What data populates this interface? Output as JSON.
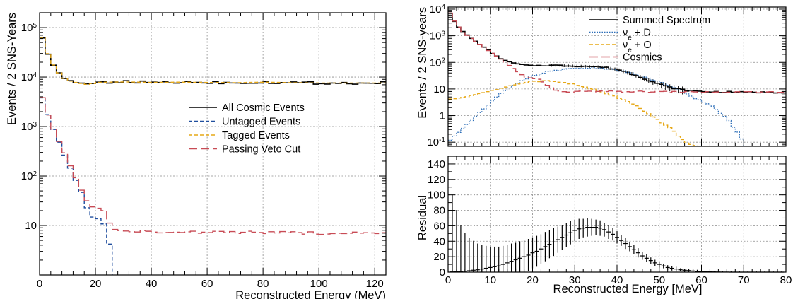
{
  "chart_data": [
    {
      "type": "line",
      "xlabel": "Reconstructed Energy (MeV)",
      "ylabel": "Events / 2 SNS-Years",
      "xlim": [
        0,
        124
      ],
      "ylim": [
        1,
        200000
      ],
      "yscale": "log",
      "grid": true,
      "legend": "center-right",
      "x_ticks": [
        "0",
        "20",
        "40",
        "60",
        "80",
        "100",
        "120"
      ],
      "y_ticks": [
        "10",
        "10^2",
        "10^3",
        "10^4",
        "10^5"
      ],
      "bin_width": 2,
      "series": [
        {
          "name": "All Cosmic Events",
          "color": "#000000",
          "style": "solid",
          "points": [
            [
              0,
              100000
            ],
            [
              2,
              40000
            ],
            [
              4,
              22000
            ],
            [
              6,
              14000
            ],
            [
              8,
              10500
            ],
            [
              10,
              8500
            ],
            [
              14,
              7600
            ],
            [
              18,
              7000
            ],
            [
              20,
              7800
            ],
            [
              30,
              8000
            ],
            [
              40,
              7800
            ],
            [
              50,
              7900
            ],
            [
              60,
              7800
            ],
            [
              70,
              7700
            ],
            [
              80,
              7900
            ],
            [
              90,
              7700
            ],
            [
              100,
              7600
            ],
            [
              110,
              7600
            ],
            [
              124,
              7600
            ]
          ]
        },
        {
          "name": "Untagged Events",
          "color": "#1f4e9e",
          "style": "dashed",
          "points": [
            [
              0,
              6000
            ],
            [
              2,
              2500
            ],
            [
              4,
              1200
            ],
            [
              6,
              650
            ],
            [
              8,
              350
            ],
            [
              10,
              200
            ],
            [
              12,
              110
            ],
            [
              14,
              60
            ],
            [
              16,
              35
            ],
            [
              18,
              15
            ],
            [
              22,
              13
            ],
            [
              24,
              10
            ],
            [
              25,
              4
            ],
            [
              26,
              1
            ]
          ]
        },
        {
          "name": "Tagged Events",
          "color": "#e6a817",
          "style": "dashed",
          "points": [
            [
              0,
              100000
            ],
            [
              2,
              40000
            ],
            [
              4,
              22000
            ],
            [
              6,
              14000
            ],
            [
              8,
              10500
            ],
            [
              10,
              8500
            ],
            [
              14,
              7600
            ],
            [
              18,
              7000
            ],
            [
              20,
              7800
            ],
            [
              30,
              8000
            ],
            [
              40,
              7800
            ],
            [
              50,
              7900
            ],
            [
              60,
              7800
            ],
            [
              70,
              7700
            ],
            [
              80,
              7900
            ],
            [
              90,
              7700
            ],
            [
              100,
              7600
            ],
            [
              110,
              7600
            ],
            [
              124,
              7600
            ]
          ]
        },
        {
          "name": "Passing Veto Cut",
          "color": "#c84b55",
          "style": "long-dashed",
          "points": [
            [
              0,
              6000
            ],
            [
              2,
              2500
            ],
            [
              4,
              1200
            ],
            [
              6,
              650
            ],
            [
              8,
              380
            ],
            [
              10,
              220
            ],
            [
              12,
              120
            ],
            [
              14,
              70
            ],
            [
              16,
              40
            ],
            [
              18,
              25
            ],
            [
              22,
              22
            ],
            [
              24,
              17
            ],
            [
              26,
              8
            ],
            [
              30,
              7.5
            ],
            [
              40,
              7.5
            ],
            [
              60,
              7.3
            ],
            [
              80,
              7.3
            ],
            [
              100,
              7
            ],
            [
              124,
              7
            ]
          ]
        }
      ]
    },
    {
      "type": "line",
      "xlabel": "",
      "ylabel": "Events / 2 SNS-years",
      "xlim": [
        0,
        80
      ],
      "ylim": [
        0.07,
        12000
      ],
      "yscale": "log",
      "grid": true,
      "legend": "top-right",
      "y_ticks": [
        "10^-1",
        "1",
        "10",
        "10^2",
        "10^3",
        "10^4"
      ],
      "bin_width": 1,
      "series": [
        {
          "name": "Summed Spectrum",
          "color": "#000000",
          "style": "solid",
          "points": [
            [
              0,
              10000
            ],
            [
              2,
              2500
            ],
            [
              4,
              1200
            ],
            [
              6,
              700
            ],
            [
              8,
              420
            ],
            [
              10,
              250
            ],
            [
              12,
              150
            ],
            [
              14,
              110
            ],
            [
              16,
              90
            ],
            [
              18,
              80
            ],
            [
              20,
              75
            ],
            [
              24,
              78
            ],
            [
              28,
              75
            ],
            [
              32,
              72
            ],
            [
              36,
              68
            ],
            [
              40,
              55
            ],
            [
              44,
              35
            ],
            [
              48,
              20
            ],
            [
              52,
              12
            ],
            [
              56,
              9
            ],
            [
              60,
              8
            ],
            [
              70,
              7.5
            ],
            [
              80,
              7.5
            ]
          ]
        },
        {
          "name": "ν_e + D",
          "color": "#2e6fb8",
          "style": "dotted",
          "points": [
            [
              0,
              0.1
            ],
            [
              2,
              0.2
            ],
            [
              4,
              0.4
            ],
            [
              6,
              0.8
            ],
            [
              8,
              1.5
            ],
            [
              10,
              3
            ],
            [
              12,
              6
            ],
            [
              14,
              10
            ],
            [
              16,
              15
            ],
            [
              18,
              22
            ],
            [
              20,
              30
            ],
            [
              24,
              45
            ],
            [
              28,
              55
            ],
            [
              32,
              60
            ],
            [
              35,
              62
            ],
            [
              38,
              58
            ],
            [
              42,
              45
            ],
            [
              46,
              30
            ],
            [
              50,
              18
            ],
            [
              54,
              10
            ],
            [
              58,
              5
            ],
            [
              62,
              2.5
            ],
            [
              66,
              0.8
            ],
            [
              68,
              0.3
            ],
            [
              70,
              0.1
            ]
          ]
        },
        {
          "name": "ν_e + O",
          "color": "#e6a817",
          "style": "dashed",
          "points": [
            [
              0,
              4
            ],
            [
              4,
              5
            ],
            [
              8,
              7
            ],
            [
              12,
              10
            ],
            [
              16,
              15
            ],
            [
              20,
              20
            ],
            [
              24,
              20
            ],
            [
              28,
              17
            ],
            [
              32,
              12
            ],
            [
              36,
              8
            ],
            [
              40,
              5
            ],
            [
              44,
              2.5
            ],
            [
              48,
              1
            ],
            [
              52,
              0.4
            ],
            [
              55,
              0.15
            ],
            [
              57,
              0.08
            ],
            [
              60,
              0.07
            ]
          ]
        },
        {
          "name": "Cosmics",
          "color": "#c84b55",
          "style": "long-dashed",
          "points": [
            [
              0,
              10000
            ],
            [
              2,
              2500
            ],
            [
              4,
              1200
            ],
            [
              6,
              700
            ],
            [
              8,
              420
            ],
            [
              10,
              250
            ],
            [
              12,
              150
            ],
            [
              14,
              90
            ],
            [
              16,
              50
            ],
            [
              18,
              30
            ],
            [
              20,
              25
            ],
            [
              22,
              22
            ],
            [
              24,
              12
            ],
            [
              26,
              8
            ],
            [
              30,
              8
            ],
            [
              40,
              8
            ],
            [
              50,
              7.8
            ],
            [
              60,
              7.6
            ],
            [
              70,
              7.5
            ],
            [
              80,
              7.5
            ]
          ]
        }
      ]
    },
    {
      "type": "bar",
      "xlabel": "Reconstructed Energy [MeV]",
      "ylabel": "Residual",
      "xlim": [
        0,
        80
      ],
      "ylim": [
        0,
        150
      ],
      "grid": true,
      "x_ticks": [
        "0",
        "10",
        "20",
        "30",
        "40",
        "50",
        "60",
        "70",
        "80"
      ],
      "y_ticks": [
        "0",
        "20",
        "40",
        "60",
        "80",
        "100",
        "120",
        "140"
      ],
      "x": [
        1,
        2,
        3,
        4,
        5,
        6,
        7,
        8,
        9,
        10,
        11,
        12,
        13,
        14,
        15,
        16,
        17,
        18,
        19,
        20,
        21,
        22,
        23,
        24,
        25,
        26,
        27,
        28,
        29,
        30,
        31,
        32,
        33,
        34,
        35,
        36,
        37,
        38,
        39,
        40,
        41,
        42,
        43,
        44,
        45,
        46,
        47,
        48,
        49,
        50,
        51,
        52,
        53,
        54,
        55,
        56,
        57,
        58,
        59,
        60,
        61,
        62,
        63,
        64,
        65,
        66,
        67,
        68,
        69,
        70,
        71,
        72,
        73,
        74,
        75,
        76,
        77,
        78,
        79
      ],
      "values": [
        0.3,
        0.5,
        0.8,
        1.2,
        1.8,
        2.5,
        3,
        4,
        5,
        6,
        7,
        8,
        10,
        12,
        14,
        16,
        18,
        20,
        22,
        25,
        27,
        30,
        33,
        36,
        39,
        42,
        45,
        48,
        51,
        54,
        56,
        57,
        58,
        58,
        58,
        57,
        55,
        52,
        49,
        45,
        41,
        37,
        33,
        29,
        25,
        21,
        18,
        15,
        12,
        10,
        8,
        6,
        5,
        4,
        3,
        2.5,
        2,
        1.5,
        1,
        0.8,
        0.5,
        0.4,
        0.3,
        0.2,
        0.1,
        0.1,
        0,
        0,
        0,
        0,
        0,
        0,
        0,
        0,
        0,
        0,
        0,
        0,
        0
      ],
      "errors": [
        100,
        80,
        60,
        50,
        43,
        38,
        34,
        31,
        29,
        27,
        26,
        25,
        24,
        23,
        23,
        22,
        22,
        21,
        21,
        20,
        20,
        19,
        19,
        18,
        18,
        17,
        16,
        16,
        15,
        14,
        13,
        12,
        12,
        11,
        10,
        10,
        9,
        9,
        8,
        8,
        7,
        7,
        6,
        6,
        6,
        5,
        5,
        4,
        4,
        4,
        3,
        3,
        3,
        3,
        2,
        2,
        2,
        2,
        2,
        1,
        1,
        1,
        1,
        1,
        1,
        1,
        1,
        1,
        1,
        1,
        1,
        1,
        1,
        1,
        1,
        1,
        1,
        1,
        1
      ]
    }
  ]
}
